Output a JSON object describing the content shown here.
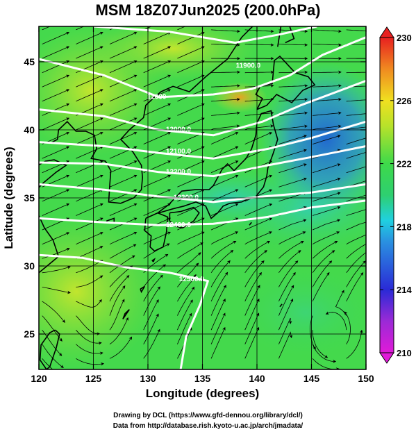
{
  "title": "MSM 18Z07Jun2025 (200.0hPa)",
  "chart_data": {
    "type": "map",
    "xlabel": "Longitude (degrees)",
    "ylabel": "Latitude  (degrees)",
    "xlim": [
      120,
      150
    ],
    "ylim": [
      22.4,
      47.6
    ],
    "xticks": [
      120,
      125,
      130,
      135,
      140,
      145,
      150
    ],
    "yticks": [
      25,
      30,
      35,
      40,
      45
    ],
    "grid": true,
    "fill_variable_range": [
      210,
      230
    ],
    "colorbar_ticks": [
      210,
      214,
      218,
      222,
      226,
      230
    ],
    "contour_labels": [
      {
        "lon": 139.2,
        "lat": 44.7,
        "text": "11900.0"
      },
      {
        "lon": 130.8,
        "lat": 42.4,
        "text": "12000"
      },
      {
        "lon": 132.8,
        "lat": 40.0,
        "text": "12000.0"
      },
      {
        "lon": 132.8,
        "lat": 38.4,
        "text": "12100.0"
      },
      {
        "lon": 132.8,
        "lat": 36.9,
        "text": "12200.0"
      },
      {
        "lon": 133.5,
        "lat": 35.0,
        "text": "12300.0"
      },
      {
        "lon": 132.8,
        "lat": 33.0,
        "text": "12400.0"
      },
      {
        "lon": 134.0,
        "lat": 29.0,
        "text": "12500.0"
      }
    ]
  },
  "credits": {
    "line1": "Drawing by DCL (https://www.gfd-dennou.org/library/dcl/)",
    "line2": "Data from http://database.rish.kyoto-u.ac.jp/arch/jmadata/"
  },
  "colors": {
    "mid_green": "#3ed94a",
    "yellow_green": "#a6e22e",
    "cyan": "#2ec8c8",
    "blue": "#2a6fd9",
    "orange": "#f0a020",
    "contour": "#ffffff",
    "vector": "#000000"
  }
}
